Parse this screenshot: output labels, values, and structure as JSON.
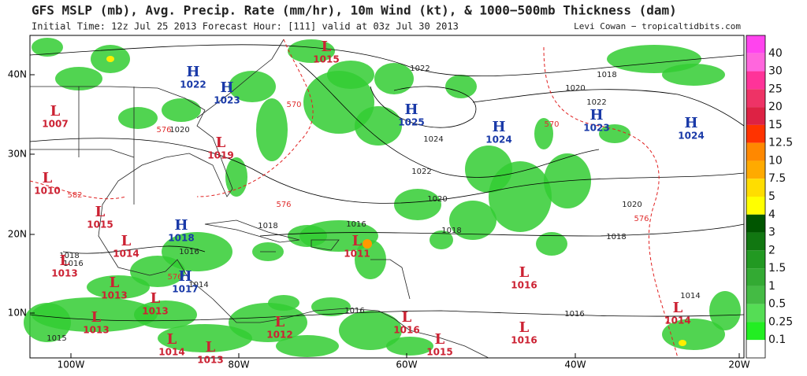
{
  "header": {
    "title": "GFS MSLP (mb), Avg. Precip. Rate (mm/hr), 10m Wind (kt), & 1000−500mb Thickness (dam)",
    "subtitle": "Initial Time: 12z Jul 25 2013 Forecast Hour: [111] valid at 03z Jul 30 2013",
    "credit": "Levi Cowan − tropicaltidbits.com"
  },
  "map": {
    "lat_labels": [
      "40N",
      "30N",
      "20N",
      "10N"
    ],
    "lon_labels": [
      "100W",
      "80W",
      "60W",
      "40W",
      "20W"
    ],
    "pressure_centers": [
      {
        "symbol": "H",
        "value": "1022"
      },
      {
        "symbol": "H",
        "value": "1023"
      },
      {
        "symbol": "L",
        "value": "1015"
      },
      {
        "symbol": "L",
        "value": "1007"
      },
      {
        "symbol": "L",
        "value": "1019"
      },
      {
        "symbol": "L",
        "value": "1010"
      },
      {
        "symbol": "L",
        "value": "1015"
      },
      {
        "symbol": "L",
        "value": "1014"
      },
      {
        "symbol": "L",
        "value": "1013"
      },
      {
        "symbol": "L",
        "value": "1013"
      },
      {
        "symbol": "L",
        "value": "1013"
      },
      {
        "symbol": "L",
        "value": "1013"
      },
      {
        "symbol": "H",
        "value": "1018"
      },
      {
        "symbol": "H",
        "value": "1017"
      },
      {
        "symbol": "L",
        "value": "1014"
      },
      {
        "symbol": "L",
        "value": "1013"
      },
      {
        "symbol": "L",
        "value": "1012"
      },
      {
        "symbol": "L",
        "value": "1011"
      },
      {
        "symbol": "L",
        "value": "1016"
      },
      {
        "symbol": "L",
        "value": "1015"
      },
      {
        "symbol": "L",
        "value": "1016"
      },
      {
        "symbol": "L",
        "value": "1016"
      },
      {
        "symbol": "L",
        "value": "1014"
      },
      {
        "symbol": "H",
        "value": "1025"
      },
      {
        "symbol": "H",
        "value": "1024"
      },
      {
        "symbol": "H",
        "value": "1023"
      },
      {
        "symbol": "H",
        "value": "1024"
      }
    ],
    "isobar_labels": [
      "1022",
      "1020",
      "1018",
      "1022",
      "1024",
      "1022",
      "1020",
      "1020",
      "1018",
      "1016",
      "1018",
      "1018",
      "1016",
      "1018",
      "1016",
      "1014",
      "1016",
      "1014",
      "1016",
      "1020",
      "1015"
    ],
    "thickness_labels": [
      "570",
      "576",
      "570",
      "582",
      "576",
      "576",
      "576"
    ]
  },
  "colorbar": {
    "labels": [
      "40",
      "30",
      "25",
      "20",
      "15",
      "12.5",
      "10",
      "7.5",
      "5",
      "4",
      "3",
      "2",
      "1.5",
      "1",
      "0.5",
      "0.25",
      "0.1"
    ],
    "colors": [
      "#ff44ee",
      "#ff66dd",
      "#ff3399",
      "#ee3366",
      "#dd2244",
      "#ff3300",
      "#ff8800",
      "#ffaa00",
      "#ffdd00",
      "#ffff00",
      "#005500",
      "#117711",
      "#229922",
      "#33aa33",
      "#44bb44",
      "#55dd55",
      "#22ee22",
      "#ffffff"
    ]
  }
}
